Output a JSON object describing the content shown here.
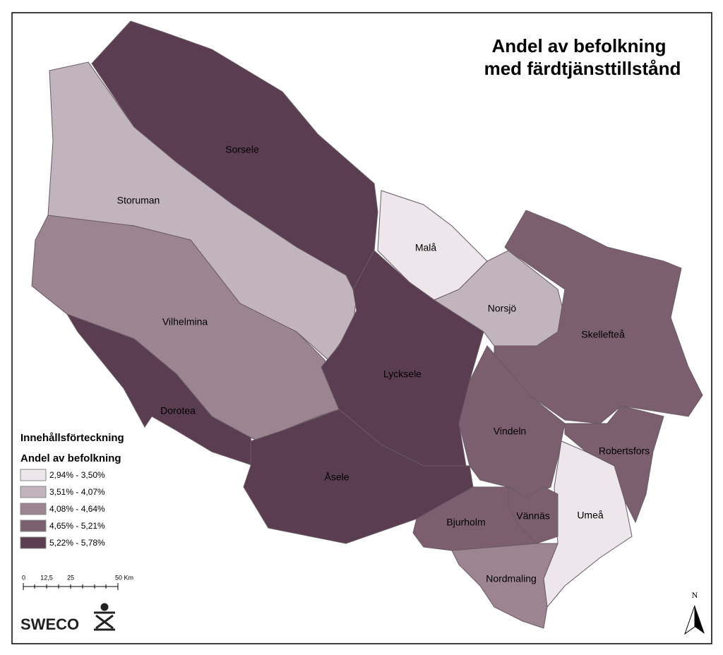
{
  "title": [
    "Andel av befolkning",
    "med färdtjänsttillstånd"
  ],
  "regions": [
    {
      "name": "Sorsele",
      "color": "#5a3d50"
    },
    {
      "name": "Storuman",
      "color": "#c2b4bd"
    },
    {
      "name": "Malå",
      "color": "#ede6ea"
    },
    {
      "name": "Vilhelmina",
      "color": "#9c8591"
    },
    {
      "name": "Dorotea",
      "color": "#5a3d50"
    },
    {
      "name": "Lycksele",
      "color": "#5a3d50"
    },
    {
      "name": "Åsele",
      "color": "#5a3d50"
    },
    {
      "name": "Norsjö",
      "color": "#c2b4bd"
    },
    {
      "name": "Skellefteå",
      "color": "#7b5f6f"
    },
    {
      "name": "Vindeln",
      "color": "#7b5f6f"
    },
    {
      "name": "Robertsfors",
      "color": "#7b5f6f"
    },
    {
      "name": "Umeå",
      "color": "#ede6ea"
    },
    {
      "name": "Vännäs",
      "color": "#7b5f6f"
    },
    {
      "name": "Bjurholm",
      "color": "#7b5f6f"
    },
    {
      "name": "Nordmaling",
      "color": "#9c8591"
    }
  ],
  "legend": {
    "heading": "Innehållsförteckning",
    "title": "Andel av befolkning",
    "classes": [
      {
        "label": "2,94% - 3,50%",
        "color": "#ede6ea"
      },
      {
        "label": "3,51% - 4,07%",
        "color": "#c2b4bd"
      },
      {
        "label": "4,08% - 4,64%",
        "color": "#9c8591"
      },
      {
        "label": "4,65% - 5,21%",
        "color": "#7b5f6f"
      },
      {
        "label": "5,22% - 5,78%",
        "color": "#5a3d50"
      }
    ]
  },
  "scale_bar": [
    "0",
    "12,5",
    "25",
    "50 Km"
  ],
  "north": "N",
  "logo": "SWECO"
}
